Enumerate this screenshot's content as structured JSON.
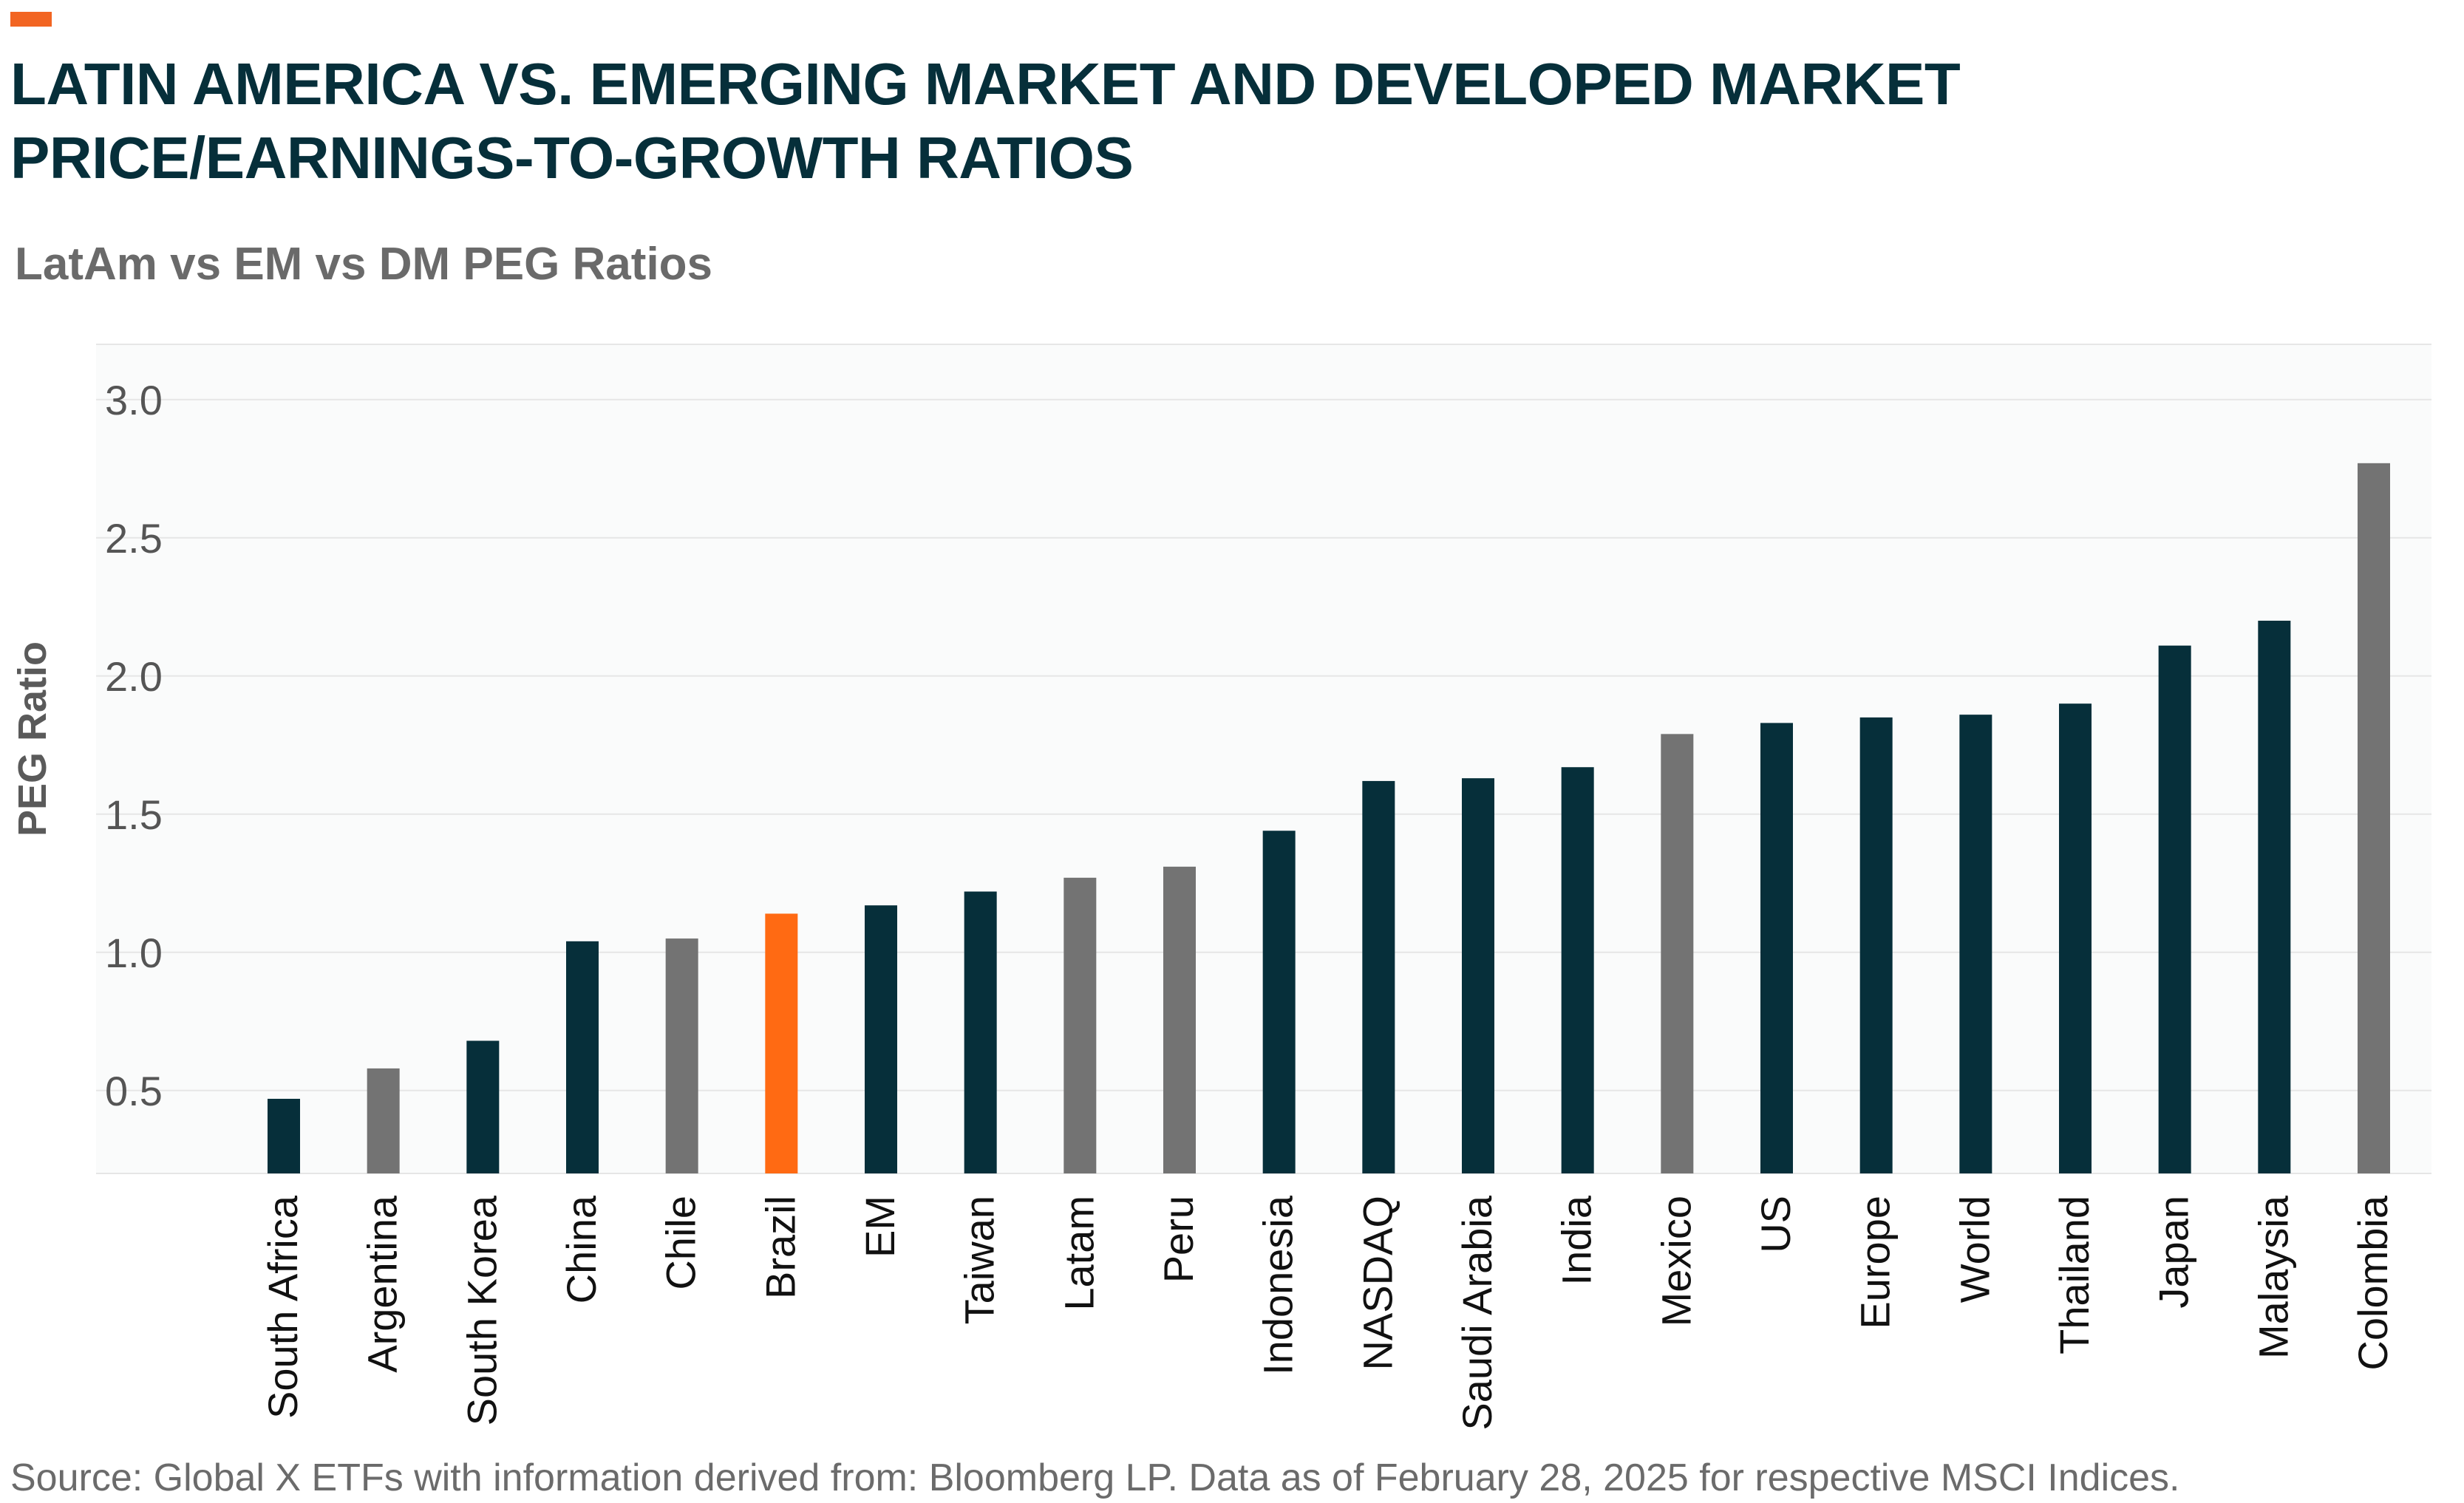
{
  "header": {
    "title_line1": "LATIN AMERICA VS. EMERGING MARKET AND DEVELOPED MARKET",
    "title_line2": "PRICE/EARNINGS-TO-GROWTH RATIOS",
    "subtitle": "LatAm vs EM vs DM PEG Ratios"
  },
  "footer": {
    "source": "Source: Global X ETFs with information derived from: Bloomberg LP. Data as of February 28, 2025 for respective MSCI Indices."
  },
  "colors": {
    "accent": "#f26522",
    "dark": "#062f3a",
    "gray": "#737373",
    "highlight": "#ff6a13",
    "plot_bg": "#fafbfb",
    "grid": "#e6e6e6"
  },
  "chart_data": {
    "type": "bar",
    "title": "LatAm vs EM vs DM PEG Ratios",
    "xlabel": "",
    "ylabel": "PEG Ratio",
    "ylim": [
      0.2,
      3.2
    ],
    "yticks": [
      0.5,
      1.0,
      1.5,
      2.0,
      2.5,
      3.0
    ],
    "ytick_labels": [
      "0.5",
      "1.0",
      "1.5",
      "2.0",
      "2.5",
      "3.0"
    ],
    "grid": true,
    "legend": "none",
    "categories": [
      "South Africa",
      "Argentina",
      "South Korea",
      "China",
      "Chile",
      "Brazil",
      "EM",
      "Taiwan",
      "Latam",
      "Peru",
      "Indonesia",
      "NASDAQ",
      "Saudi Arabia",
      "India",
      "Mexico",
      "US",
      "Europe",
      "World",
      "Thailand",
      "Japan",
      "Malaysia",
      "Colombia"
    ],
    "values": [
      0.47,
      0.58,
      0.68,
      1.04,
      1.05,
      1.14,
      1.17,
      1.22,
      1.27,
      1.31,
      1.44,
      1.62,
      1.63,
      1.67,
      1.79,
      1.83,
      1.85,
      1.86,
      1.9,
      2.11,
      2.2,
      2.77
    ],
    "bar_colors": [
      "dark",
      "gray",
      "dark",
      "dark",
      "gray",
      "highlight",
      "dark",
      "dark",
      "gray",
      "gray",
      "dark",
      "dark",
      "dark",
      "dark",
      "gray",
      "dark",
      "dark",
      "dark",
      "dark",
      "dark",
      "dark",
      "gray"
    ]
  }
}
